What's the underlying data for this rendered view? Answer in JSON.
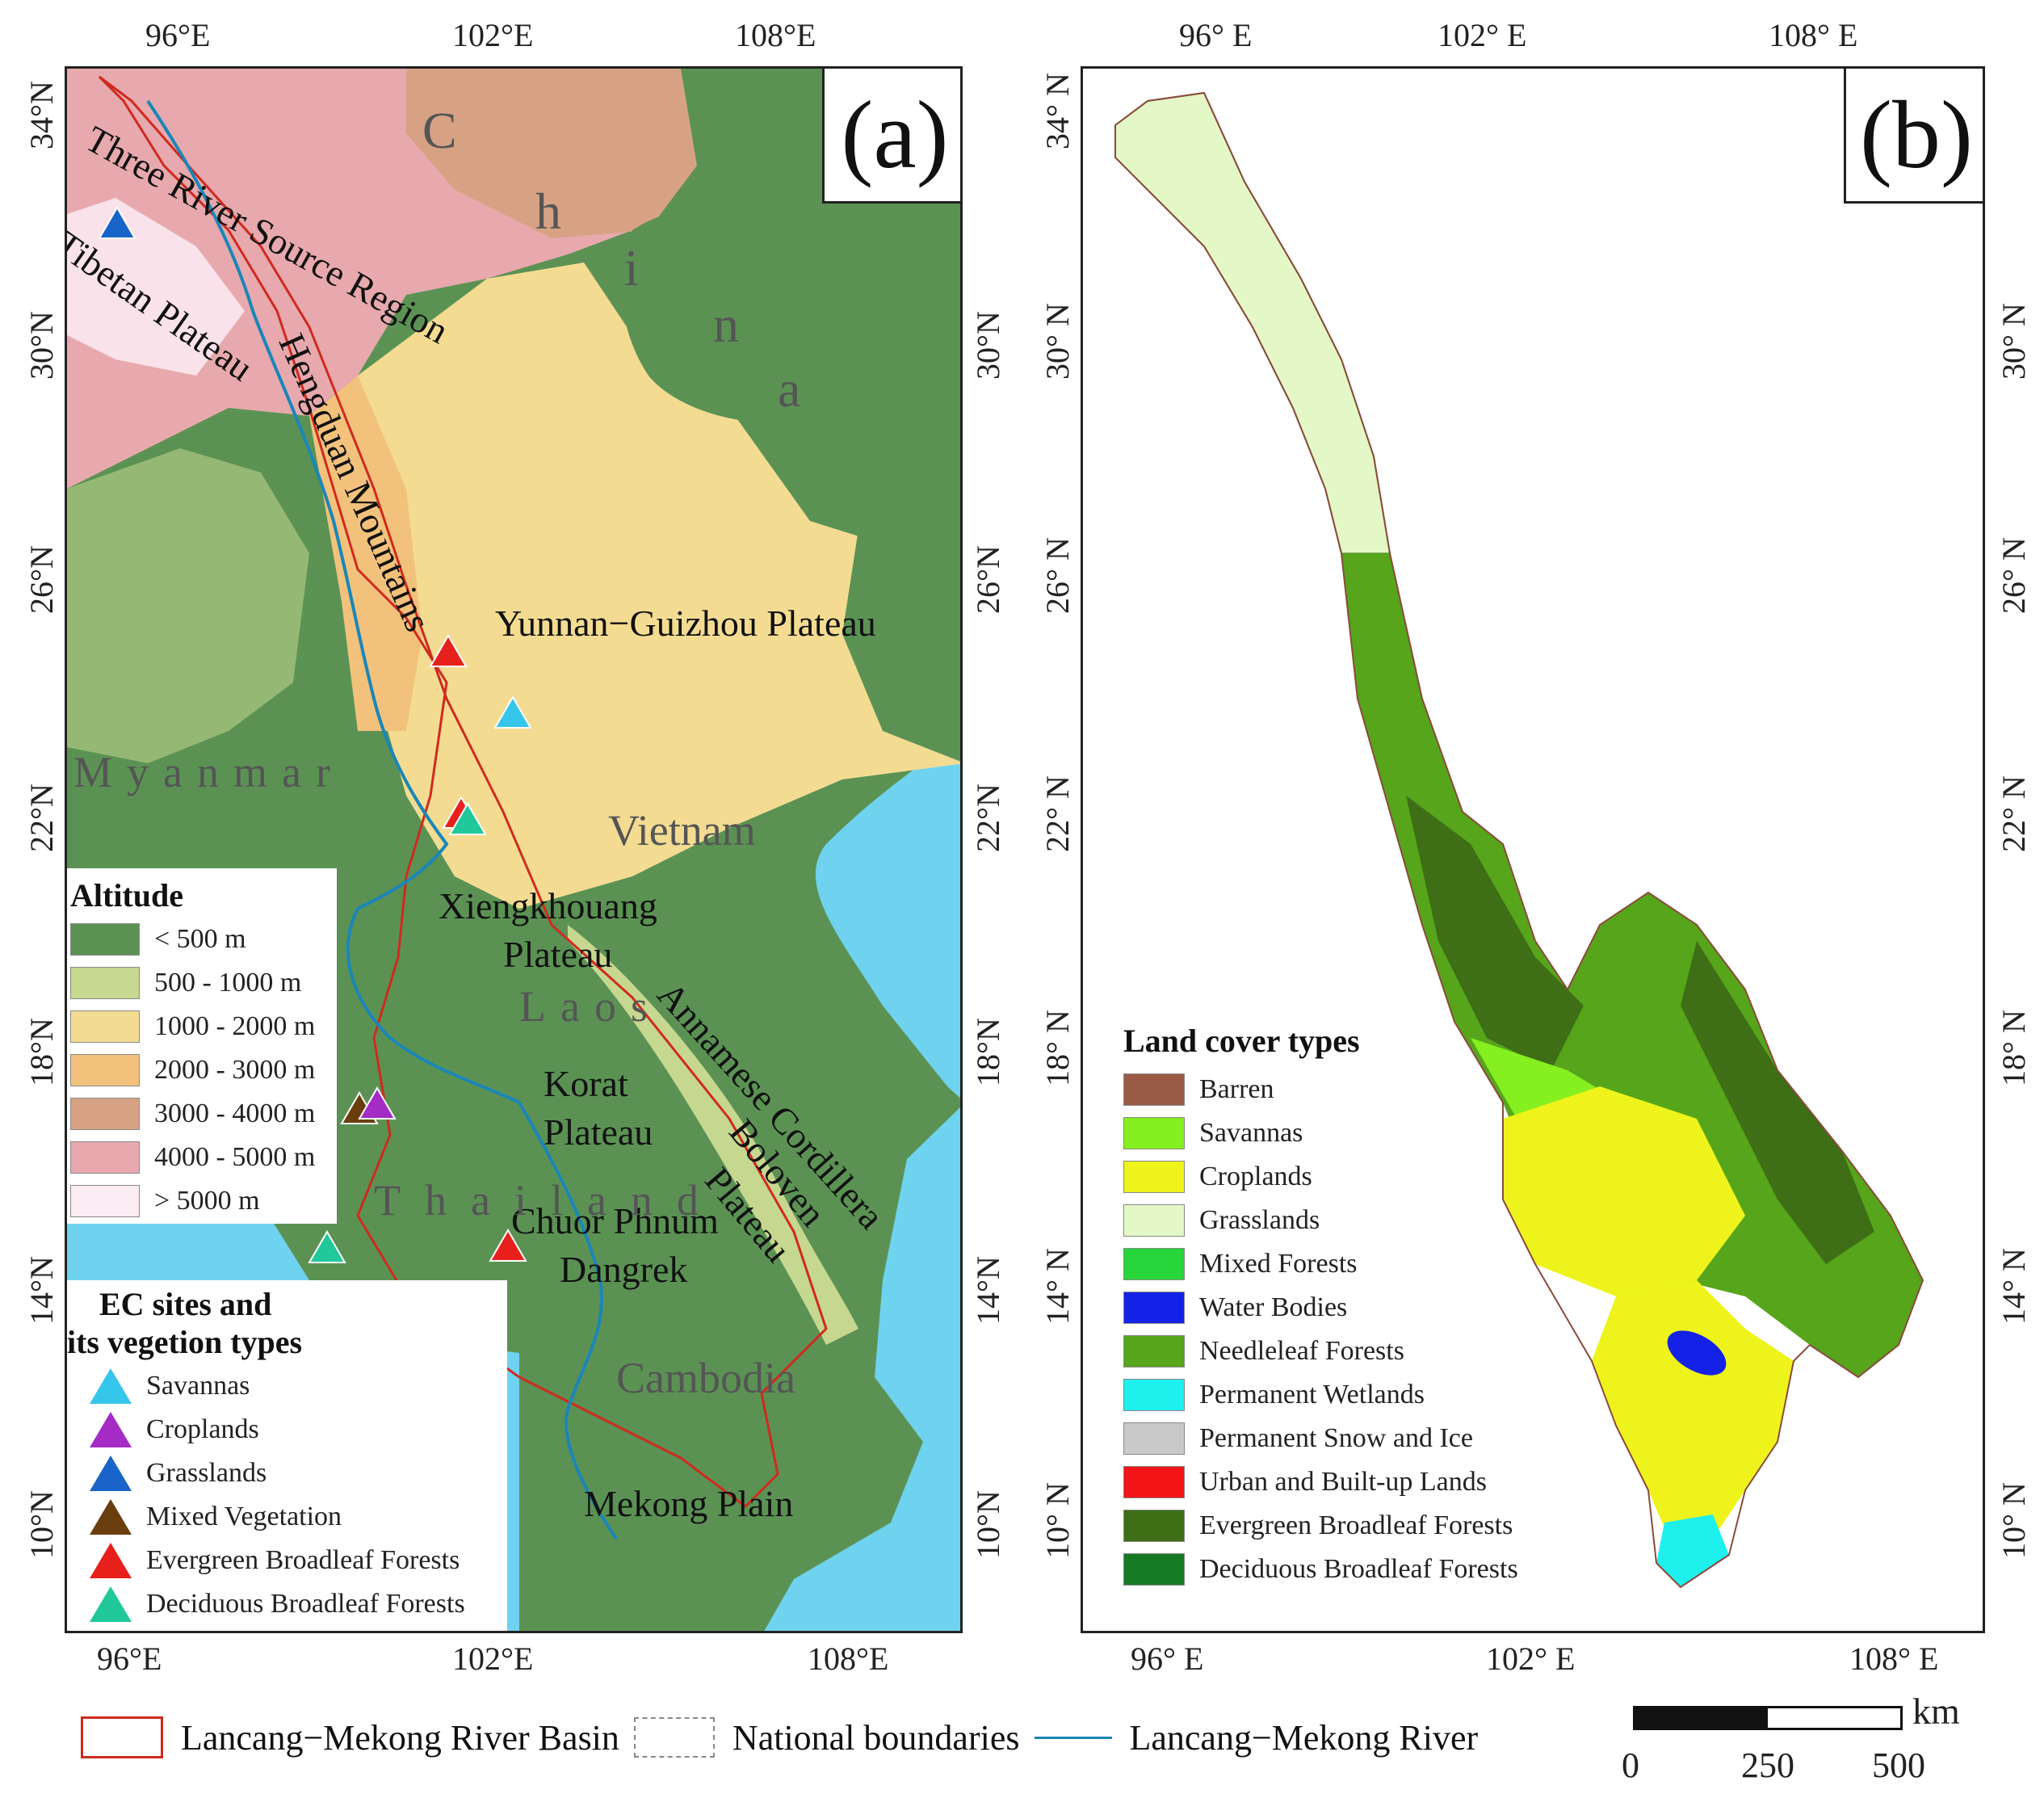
{
  "panel_a": {
    "label": "(a)",
    "lon_ticks": [
      "96°E",
      "102°E",
      "108°E"
    ],
    "lat_ticks": [
      "34°N",
      "30°N",
      "26°N",
      "22°N",
      "18°N",
      "14°N",
      "10°N"
    ],
    "place_names": {
      "three_river": "Three River Source Region",
      "tibetan": "Tibetan Plateau",
      "hengduan": "Hengduan Mountains",
      "yunnan": "Yunnan−Guizhou Plateau",
      "xiengkhouang1": "Xiengkhouang",
      "xiengkhouang2": "Plateau",
      "korat1": "Korat",
      "korat2": "Plateau",
      "annamese": "Annamese Cordillera",
      "boloven1": "Boloven",
      "boloven2": "Plateau",
      "chuor1": "Chuor Phnum",
      "chuor2": "Dangrek",
      "mekong_plain": "Mekong Plain"
    },
    "countries": {
      "china": [
        "C",
        "h",
        "i",
        "n",
        "a"
      ],
      "myanmar": "Myanmar",
      "vietnam": "Vietnam",
      "laos": "Laos",
      "thailand": "Thailand",
      "cambodia": "Cambodia"
    },
    "altitude_legend": {
      "title": "Altitude",
      "items": [
        {
          "label": "< 500 m",
          "color": "#5b9254"
        },
        {
          "label": "500 - 1000 m",
          "color": "#c6d78f"
        },
        {
          "label": "1000 - 2000 m",
          "color": "#f3dc92"
        },
        {
          "label": "2000 - 3000 m",
          "color": "#f2c27c"
        },
        {
          "label": "3000 - 4000 m",
          "color": "#d7a283"
        },
        {
          "label": "4000 - 5000 m",
          "color": "#e7a9ad"
        },
        {
          "label": "> 5000 m",
          "color": "#fcecf3"
        }
      ]
    },
    "ec_legend": {
      "title_line1": "EC sites and",
      "title_line2": "its vegetion types",
      "items": [
        {
          "label": "Savannas",
          "color": "#36c6ec"
        },
        {
          "label": "Croplands",
          "color": "#a42bc4"
        },
        {
          "label": "Grasslands",
          "color": "#1864c8"
        },
        {
          "label": "Mixed Vegetation",
          "color": "#6a3d0c"
        },
        {
          "label": "Evergreen Broadleaf Forests",
          "color": "#e8201b"
        },
        {
          "label": "Deciduous Broadleaf Forests",
          "color": "#20c89a"
        }
      ]
    },
    "colors": {
      "sea": "#6fd3ef",
      "lowland": "#5b9254",
      "river": "#1a86b8",
      "basin": "#d02a1e"
    }
  },
  "panel_b": {
    "label": "(b)",
    "lon_ticks": [
      "96° E",
      "102° E",
      "108° E"
    ],
    "lat_ticks": [
      "34° N",
      "30° N",
      "26° N",
      "22° N",
      "18° N",
      "14° N",
      "10° N"
    ],
    "legend": {
      "title": "Land cover types",
      "items": [
        {
          "label": "Barren",
          "color": "#9a5b46"
        },
        {
          "label": "Savannas",
          "color": "#86ef1f"
        },
        {
          "label": "Croplands",
          "color": "#eef41b"
        },
        {
          "label": "Grasslands",
          "color": "#e3f7c7"
        },
        {
          "label": "Mixed Forests",
          "color": "#27d63a"
        },
        {
          "label": "Water Bodies",
          "color": "#1422e8"
        },
        {
          "label": "Needleleaf Forests",
          "color": "#56a51b"
        },
        {
          "label": "Permanent Wetlands",
          "color": "#1ef0ee"
        },
        {
          "label": "Permanent Snow and Ice",
          "color": "#c9c9c9"
        },
        {
          "label": "Urban and Built-up Lands",
          "color": "#f21416"
        },
        {
          "label": "Evergreen Broadleaf Forests",
          "color": "#3e6e16"
        },
        {
          "label": "Deciduous Broadleaf Forests",
          "color": "#167a24"
        }
      ]
    }
  },
  "bottom_legend": {
    "basin": "Lancang−Mekong River Basin",
    "boundaries": "National boundaries",
    "river": "Lancang−Mekong River",
    "scale_unit": "km",
    "scale_ticks": [
      "0",
      "250",
      "500"
    ]
  }
}
